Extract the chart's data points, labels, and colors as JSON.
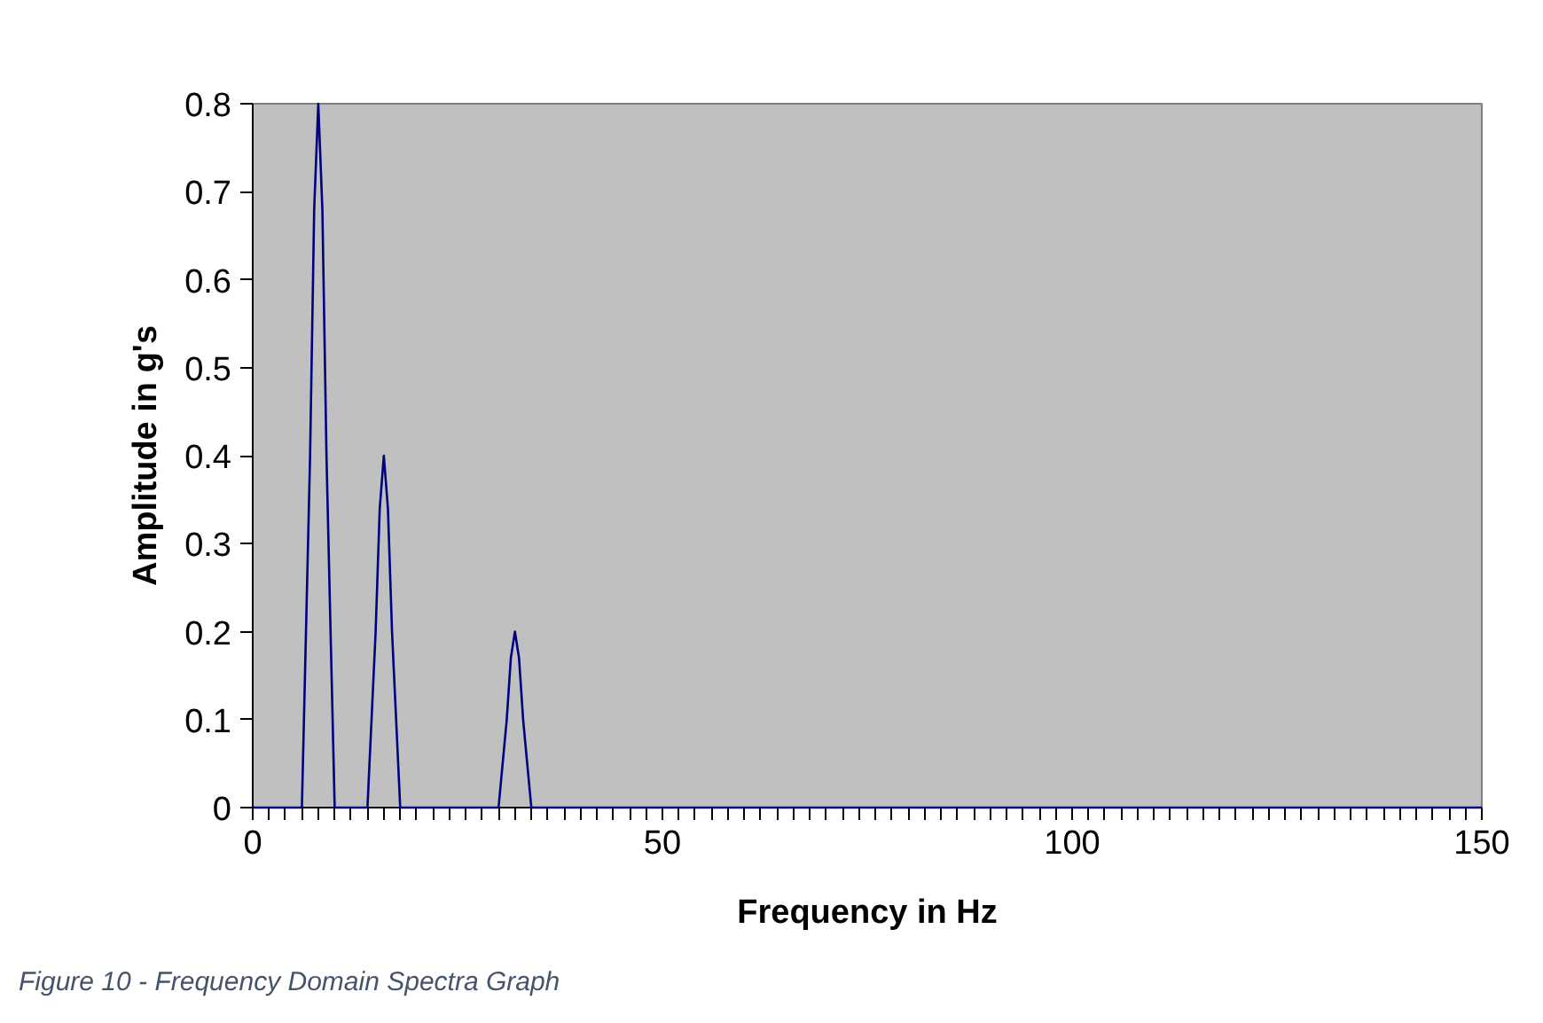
{
  "chart_data": {
    "type": "line",
    "xlabel": "Frequency in Hz",
    "ylabel": "Amplitude in g's",
    "annotations": [
      "Figure 10 - Frequency Domain Spectra Graph"
    ],
    "x": [
      0,
      6,
      7,
      7.5,
      8,
      8.5,
      9,
      10,
      14,
      15,
      15.5,
      16,
      16.5,
      17,
      18,
      30,
      31,
      31.5,
      32,
      32.5,
      33,
      34,
      150
    ],
    "series": [
      {
        "color": "#000080",
        "values": [
          0,
          0,
          0.4,
          0.68,
          0.8,
          0.68,
          0.4,
          0,
          0,
          0.2,
          0.34,
          0.4,
          0.34,
          0.2,
          0,
          0,
          0.1,
          0.17,
          0.2,
          0.17,
          0.1,
          0,
          0
        ]
      }
    ],
    "xlim": [
      0,
      150
    ],
    "ylim": [
      0,
      0.8
    ],
    "xticks": [
      0,
      {
        "value": 2,
        "label": null
      },
      {
        "value": 4,
        "label": null
      },
      {
        "value": 6,
        "label": null
      },
      {
        "value": 8,
        "label": null
      },
      {
        "value": 10,
        "label": null
      },
      {
        "value": 12,
        "label": null
      },
      {
        "value": 14,
        "label": null
      },
      {
        "value": 16,
        "label": null
      },
      {
        "value": 18,
        "label": null
      },
      {
        "value": 20,
        "label": null
      },
      {
        "value": 22,
        "label": null
      },
      {
        "value": 24,
        "label": null
      },
      {
        "value": 26,
        "label": null
      },
      {
        "value": 28,
        "label": null
      },
      {
        "value": 30,
        "label": null
      },
      {
        "value": 32,
        "label": null
      },
      {
        "value": 34,
        "label": null
      },
      {
        "value": 36,
        "label": null
      },
      {
        "value": 38,
        "label": null
      },
      {
        "value": 40,
        "label": null
      },
      {
        "value": 42,
        "label": null
      },
      {
        "value": 44,
        "label": null
      },
      {
        "value": 46,
        "label": null
      },
      {
        "value": 48,
        "label": null
      },
      50,
      {
        "value": 52,
        "label": null
      },
      {
        "value": 54,
        "label": null
      },
      {
        "value": 56,
        "label": null
      },
      {
        "value": 58,
        "label": null
      },
      {
        "value": 60,
        "label": null
      },
      {
        "value": 62,
        "label": null
      },
      {
        "value": 64,
        "label": null
      },
      {
        "value": 66,
        "label": null
      },
      {
        "value": 68,
        "label": null
      },
      {
        "value": 70,
        "label": null
      },
      {
        "value": 72,
        "label": null
      },
      {
        "value": 74,
        "label": null
      },
      {
        "value": 76,
        "label": null
      },
      {
        "value": 78,
        "label": null
      },
      {
        "value": 80,
        "label": null
      },
      {
        "value": 82,
        "label": null
      },
      {
        "value": 84,
        "label": null
      },
      {
        "value": 86,
        "label": null
      },
      {
        "value": 88,
        "label": null
      },
      {
        "value": 90,
        "label": null
      },
      {
        "value": 92,
        "label": null
      },
      {
        "value": 94,
        "label": null
      },
      {
        "value": 96,
        "label": null
      },
      {
        "value": 98,
        "label": null
      },
      100,
      {
        "value": 102,
        "label": null
      },
      {
        "value": 104,
        "label": null
      },
      {
        "value": 106,
        "label": null
      },
      {
        "value": 108,
        "label": null
      },
      {
        "value": 110,
        "label": null
      },
      {
        "value": 112,
        "label": null
      },
      {
        "value": 114,
        "label": null
      },
      {
        "value": 116,
        "label": null
      },
      {
        "value": 118,
        "label": null
      },
      {
        "value": 120,
        "label": null
      },
      {
        "value": 122,
        "label": null
      },
      {
        "value": 124,
        "label": null
      },
      {
        "value": 126,
        "label": null
      },
      {
        "value": 128,
        "label": null
      },
      {
        "value": 130,
        "label": null
      },
      {
        "value": 132,
        "label": null
      },
      {
        "value": 134,
        "label": null
      },
      {
        "value": 136,
        "label": null
      },
      {
        "value": 138,
        "label": null
      },
      {
        "value": 140,
        "label": null
      },
      {
        "value": 142,
        "label": null
      },
      {
        "value": 144,
        "label": null
      },
      {
        "value": 146,
        "label": null
      },
      {
        "value": 148,
        "label": null
      },
      150
    ],
    "yticks": [
      0,
      0.1,
      0.2,
      0.3,
      0.4,
      0.5,
      0.6,
      0.7,
      0.8
    ],
    "grid": false,
    "marker": "none",
    "line_style": "solid"
  }
}
